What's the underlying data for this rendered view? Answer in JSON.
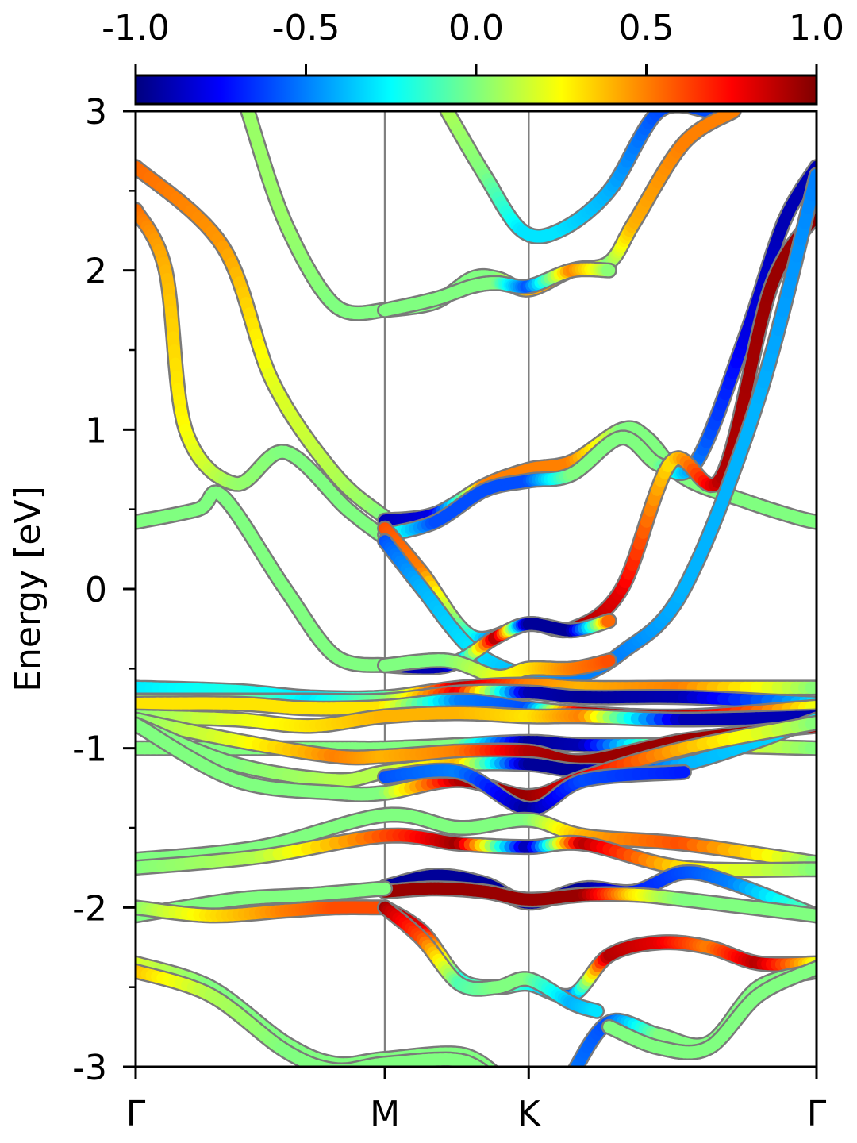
{
  "chart_data": {
    "type": "line",
    "title": "",
    "ylabel": "Energy [eV]",
    "xlabel": "",
    "ylim": [
      -3,
      3
    ],
    "y_ticks": [
      {
        "value": 3,
        "label": "3"
      },
      {
        "value": 2,
        "label": "2"
      },
      {
        "value": 1,
        "label": "1"
      },
      {
        "value": 0,
        "label": "0"
      },
      {
        "value": -1,
        "label": "-1"
      },
      {
        "value": -2,
        "label": "-2"
      },
      {
        "value": -3,
        "label": "-3"
      }
    ],
    "y_minor_ticks": [
      2.5,
      1.5,
      0.5,
      -0.5,
      -1.5,
      -2.5
    ],
    "high_symmetry_points": [
      {
        "label": "Γ",
        "k": 0.0
      },
      {
        "label": "M",
        "k": 1.0
      },
      {
        "label": "K",
        "k": 1.577
      },
      {
        "label": "Γ",
        "k": 2.732
      }
    ],
    "colorbar": {
      "colormap": "jet",
      "range": [
        -1.0,
        1.0
      ],
      "ticks": [
        {
          "value": -1.0,
          "label": "-1.0"
        },
        {
          "value": -0.5,
          "label": "-0.5"
        },
        {
          "value": 0.0,
          "label": "0.0"
        },
        {
          "value": 0.5,
          "label": "0.5"
        },
        {
          "value": 1.0,
          "label": "1.0"
        }
      ]
    },
    "bands": [
      {
        "k": [
          0,
          0.35,
          0.55,
          0.8,
          1.0
        ],
        "E": [
          2.65,
          2.15,
          1.3,
          0.72,
          0.45
        ],
        "c": [
          0.55,
          0.45,
          0.2,
          0.1,
          0.0
        ]
      },
      {
        "k": [
          0,
          0.12,
          0.2,
          0.4,
          0.6,
          0.85,
          1.0
        ],
        "E": [
          2.38,
          2.0,
          1.0,
          0.66,
          0.86,
          0.5,
          0.32
        ],
        "c": [
          0.55,
          0.4,
          0.25,
          0.05,
          0.0,
          0.0,
          0.0
        ]
      },
      {
        "k": [
          0,
          0.25,
          0.35,
          0.6,
          0.8,
          1.0
        ],
        "E": [
          0.42,
          0.5,
          0.58,
          0.0,
          -0.42,
          -0.48
        ],
        "c": [
          0.0,
          0.0,
          0.0,
          0.0,
          0.0,
          0.0
        ]
      },
      {
        "k": [
          0.45,
          0.6,
          0.8,
          1.0
        ],
        "E": [
          3.0,
          2.3,
          1.78,
          1.75
        ],
        "c": [
          0.05,
          0.05,
          0.0,
          0.0
        ]
      },
      {
        "k": [
          1.0,
          1.2,
          1.4,
          1.577,
          1.75,
          1.95,
          2.05,
          2.2,
          2.45,
          2.65,
          2.732
        ],
        "E": [
          0.43,
          0.47,
          0.65,
          0.75,
          0.8,
          1.0,
          0.95,
          0.7,
          0.55,
          0.45,
          0.42
        ],
        "c": [
          -0.9,
          -0.8,
          0.5,
          0.5,
          0.5,
          0.0,
          0.0,
          0.0,
          0.0,
          0.0,
          0.0
        ]
      },
      {
        "k": [
          1.0,
          1.2,
          1.4,
          1.577,
          1.75,
          1.95,
          2.1,
          2.25,
          2.45,
          2.6,
          2.732
        ],
        "E": [
          0.34,
          0.42,
          0.62,
          0.68,
          0.72,
          0.95,
          0.78,
          0.8,
          1.6,
          2.3,
          2.65
        ],
        "c": [
          0.0,
          -0.6,
          -0.6,
          -0.6,
          0.0,
          0.0,
          0.0,
          -0.5,
          -0.8,
          -0.9,
          -0.9
        ]
      },
      {
        "k": [
          1.0,
          1.15,
          1.35,
          1.577,
          1.75,
          1.95,
          2.15,
          2.35,
          2.55,
          2.732
        ],
        "E": [
          0.38,
          0.1,
          -0.3,
          -0.22,
          -0.25,
          0.0,
          0.8,
          0.7,
          1.9,
          2.35
        ],
        "c": [
          0.6,
          0.5,
          -0.2,
          -0.95,
          0.95,
          0.8,
          0.3,
          0.9,
          0.95,
          0.95
        ]
      },
      {
        "k": [
          1.0,
          1.15,
          1.35,
          1.577,
          1.75,
          1.95,
          2.2,
          2.5,
          2.732
        ],
        "E": [
          0.3,
          0.0,
          -0.38,
          -0.55,
          -0.56,
          -0.4,
          0.0,
          1.2,
          2.6
        ],
        "c": [
          -0.6,
          -0.4,
          -0.3,
          -0.4,
          -0.5,
          -0.5,
          -0.4,
          -0.4,
          -0.5
        ]
      },
      {
        "k": [
          1.0,
          1.25,
          1.45,
          1.577,
          1.75,
          1.9
        ],
        "E": [
          -0.48,
          -0.48,
          -0.3,
          -0.22,
          -0.26,
          -0.2
        ],
        "c": [
          -0.9,
          -0.9,
          0.95,
          -0.95,
          -0.95,
          0.6
        ]
      },
      {
        "k": [
          1.0,
          1.25,
          1.45,
          1.577,
          1.75,
          1.9
        ],
        "E": [
          -0.48,
          -0.45,
          -0.55,
          -0.5,
          -0.5,
          -0.45
        ],
        "c": [
          0.0,
          0.0,
          0.2,
          0.3,
          0.5,
          0.6
        ]
      },
      {
        "k": [
          0,
          0.4,
          0.7,
          1.0,
          1.3,
          1.577,
          1.8,
          2.2,
          2.732
        ],
        "E": [
          -0.62,
          -0.64,
          -0.68,
          -0.68,
          -0.62,
          -0.6,
          -0.62,
          -0.62,
          -0.62
        ],
        "c": [
          -0.3,
          -0.2,
          -0.3,
          -0.1,
          0.9,
          0.5,
          0.4,
          0.5,
          0.0
        ]
      },
      {
        "k": [
          0,
          0.4,
          0.7,
          1.0,
          1.3,
          1.577,
          1.8,
          2.2,
          2.732
        ],
        "E": [
          -0.7,
          -0.7,
          -0.7,
          -0.7,
          -0.65,
          -0.65,
          -0.68,
          -0.68,
          -0.72
        ],
        "c": [
          0.1,
          0.0,
          -0.3,
          0.0,
          0.8,
          -0.9,
          -0.95,
          -0.9,
          -0.3
        ]
      },
      {
        "k": [
          0,
          0.4,
          0.7,
          1.0,
          1.3,
          1.577,
          1.8,
          2.2,
          2.732
        ],
        "E": [
          -0.72,
          -0.72,
          -0.75,
          -0.74,
          -0.7,
          -0.75,
          -0.78,
          -0.8,
          -0.74
        ],
        "c": [
          0.3,
          0.3,
          0.3,
          0.3,
          -0.5,
          -0.6,
          0.9,
          0.9,
          0.2
        ]
      },
      {
        "k": [
          0,
          0.4,
          0.7,
          1.0,
          1.3,
          1.577,
          1.8,
          2.2,
          2.732
        ],
        "E": [
          -0.8,
          -0.82,
          -0.86,
          -0.8,
          -0.78,
          -0.8,
          -0.8,
          -0.82,
          -0.8
        ],
        "c": [
          0.0,
          0.2,
          0.3,
          0.4,
          0.4,
          0.3,
          0.5,
          -0.9,
          -0.9
        ]
      },
      {
        "k": [
          0,
          0.4,
          0.8,
          1.0,
          1.3,
          1.577,
          1.8,
          2.2,
          2.732
        ],
        "E": [
          -1.0,
          -1.0,
          -1.0,
          -1.0,
          -0.98,
          -0.96,
          -0.98,
          -0.98,
          -1.0
        ],
        "c": [
          0.0,
          0.0,
          0.0,
          0.0,
          0.0,
          -0.95,
          -0.9,
          0.3,
          0.0
        ]
      },
      {
        "k": [
          0,
          0.4,
          0.8,
          1.0,
          1.3,
          1.577,
          1.8,
          2.2,
          2.732
        ],
        "E": [
          -0.82,
          -0.95,
          -1.05,
          -1.05,
          -1.02,
          -1.02,
          -1.08,
          -0.95,
          -0.86
        ],
        "c": [
          0.0,
          0.2,
          0.5,
          0.4,
          0.5,
          0.9,
          0.95,
          0.95,
          0.9
        ]
      },
      {
        "k": [
          0,
          0.4,
          0.8,
          1.0,
          1.3,
          1.577,
          1.8,
          2.2,
          2.732
        ],
        "E": [
          -0.85,
          -1.1,
          -1.2,
          -1.15,
          -1.1,
          -1.1,
          -1.14,
          -1.1,
          -0.82
        ],
        "c": [
          0.0,
          0.0,
          0.1,
          0.1,
          0.4,
          -0.95,
          -0.95,
          -0.4,
          -0.3
        ]
      },
      {
        "k": [
          0,
          0.4,
          0.8,
          1.0,
          1.3,
          1.577,
          1.8,
          2.2,
          2.732
        ],
        "E": [
          -0.85,
          -1.2,
          -1.28,
          -1.28,
          -1.2,
          -1.3,
          -1.18,
          -1.0,
          -0.84
        ],
        "c": [
          0.0,
          0.0,
          0.0,
          0.0,
          0.9,
          0.95,
          0.8,
          0.4,
          0.0
        ]
      },
      {
        "k": [
          1.0,
          1.3,
          1.577,
          1.8,
          2.2
        ],
        "E": [
          -1.18,
          -1.15,
          -1.38,
          -1.2,
          -1.15
        ],
        "c": [
          -0.6,
          -0.5,
          -0.95,
          -0.6,
          -0.7
        ]
      },
      {
        "k": [
          0,
          0.5,
          1.0,
          1.3,
          1.577,
          1.8,
          2.2,
          2.732
        ],
        "E": [
          -1.7,
          -1.62,
          -1.42,
          -1.5,
          -1.45,
          -1.55,
          -1.6,
          -1.72
        ],
        "c": [
          0.0,
          0.0,
          0.0,
          0.0,
          0.0,
          0.4,
          0.6,
          0.0
        ]
      },
      {
        "k": [
          0,
          0.5,
          1.0,
          1.3,
          1.577,
          1.8,
          2.2,
          2.732
        ],
        "E": [
          -1.75,
          -1.68,
          -1.55,
          -1.6,
          -1.62,
          -1.6,
          -1.75,
          -1.76
        ],
        "c": [
          0.0,
          0.1,
          0.6,
          0.95,
          -0.95,
          0.9,
          0.3,
          0.0
        ]
      },
      {
        "k": [
          1.0,
          1.2,
          1.4,
          1.577,
          1.8,
          2.0,
          2.2,
          2.4,
          2.732
        ],
        "E": [
          -1.87,
          -1.8,
          -1.85,
          -1.97,
          -1.88,
          -1.9,
          -1.78,
          -1.85,
          -2.05
        ],
        "c": [
          -0.95,
          -0.95,
          -0.95,
          -0.95,
          -0.95,
          -0.7,
          -0.6,
          -0.5,
          0.0
        ]
      },
      {
        "k": [
          1.0,
          1.2,
          1.4,
          1.577,
          1.8,
          2.0,
          2.2,
          2.732
        ],
        "E": [
          -1.9,
          -1.88,
          -1.9,
          -1.95,
          -1.92,
          -1.92,
          -1.95,
          -2.05
        ],
        "c": [
          0.95,
          0.95,
          0.95,
          0.95,
          0.95,
          0.3,
          0.0,
          0.0
        ]
      },
      {
        "k": [
          0,
          0.4,
          0.7,
          1.0
        ],
        "E": [
          -2.05,
          -1.95,
          -1.92,
          -1.88
        ],
        "c": [
          0.0,
          0.0,
          0.0,
          0.0
        ]
      },
      {
        "k": [
          0,
          0.3,
          0.6,
          0.8,
          1.0
        ],
        "E": [
          -2.0,
          -2.05,
          -2.02,
          -2.0,
          -2.0
        ],
        "c": [
          0.0,
          0.3,
          0.5,
          0.6,
          0.6
        ]
      },
      {
        "k": [
          1.0,
          1.15,
          1.3,
          1.45,
          1.577,
          1.75,
          1.9,
          2.1,
          2.3,
          2.5,
          2.732
        ],
        "E": [
          -2.0,
          -2.15,
          -2.45,
          -2.5,
          -2.48,
          -2.55,
          -2.3,
          -2.22,
          -2.25,
          -2.35,
          -2.35
        ],
        "c": [
          0.95,
          0.8,
          -0.2,
          0.0,
          -0.2,
          -0.6,
          0.9,
          0.8,
          0.5,
          0.9,
          0.2
        ]
      },
      {
        "k": [
          1.0,
          1.15,
          1.3,
          1.45,
          1.577,
          1.75,
          1.85
        ],
        "E": [
          -2.0,
          -2.2,
          -2.48,
          -2.5,
          -2.45,
          -2.6,
          -2.65
        ],
        "c": [
          0.95,
          0.6,
          -0.1,
          0.0,
          0.0,
          -0.4,
          -0.3
        ]
      },
      {
        "k": [
          0,
          0.3,
          0.6,
          0.8,
          1.0,
          1.3,
          1.45
        ],
        "E": [
          -2.35,
          -2.5,
          -2.85,
          -2.98,
          -2.95,
          -2.92,
          -3.05
        ],
        "c": [
          0.2,
          0.0,
          0.0,
          0.0,
          0.0,
          0.0,
          0.0
        ]
      },
      {
        "k": [
          0,
          0.3,
          0.6,
          0.8,
          1.0,
          1.3,
          1.45
        ],
        "E": [
          -2.4,
          -2.55,
          -2.9,
          -3.02,
          -2.98,
          -2.96,
          -3.1
        ],
        "c": [
          0.4,
          0.1,
          0.0,
          0.0,
          0.0,
          0.0,
          0.0
        ]
      },
      {
        "k": [
          1.75,
          1.9,
          2.1,
          2.3,
          2.5,
          2.732
        ],
        "E": [
          -3.05,
          -2.72,
          -2.8,
          -2.85,
          -2.5,
          -2.4
        ],
        "c": [
          -0.5,
          -0.6,
          0.0,
          0.0,
          0.0,
          0.0
        ]
      },
      {
        "k": [
          1.9,
          2.1,
          2.3,
          2.5,
          2.732
        ],
        "E": [
          -2.75,
          -2.88,
          -2.88,
          -2.55,
          -2.38
        ],
        "c": [
          0.0,
          0.0,
          0.0,
          0.0,
          0.0
        ]
      },
      {
        "k": [
          1.25,
          1.4,
          1.55,
          1.7,
          1.9,
          2.1,
          2.3
        ],
        "E": [
          3.0,
          2.6,
          2.25,
          2.25,
          2.5,
          3.0,
          3.0
        ],
        "c": [
          0.1,
          0.0,
          -0.3,
          -0.3,
          -0.4,
          -0.6,
          -0.6
        ]
      },
      {
        "k": [
          1.0,
          1.2,
          1.35,
          1.45,
          1.577,
          1.75,
          1.9,
          2.0,
          2.2,
          2.4
        ],
        "E": [
          1.75,
          1.8,
          1.95,
          1.95,
          1.88,
          2.0,
          2.05,
          2.3,
          2.8,
          3.0
        ],
        "c": [
          0.0,
          0.0,
          0.0,
          0.0,
          0.4,
          0.5,
          0.0,
          0.4,
          0.5,
          0.5
        ]
      },
      {
        "k": [
          1.0,
          1.2,
          1.35,
          1.45,
          1.577,
          1.75,
          1.9
        ],
        "E": [
          1.75,
          1.82,
          1.9,
          1.92,
          1.9,
          2.0,
          2.0
        ],
        "c": [
          0.0,
          0.0,
          0.0,
          0.0,
          -0.6,
          0.5,
          0.0
        ]
      }
    ]
  }
}
